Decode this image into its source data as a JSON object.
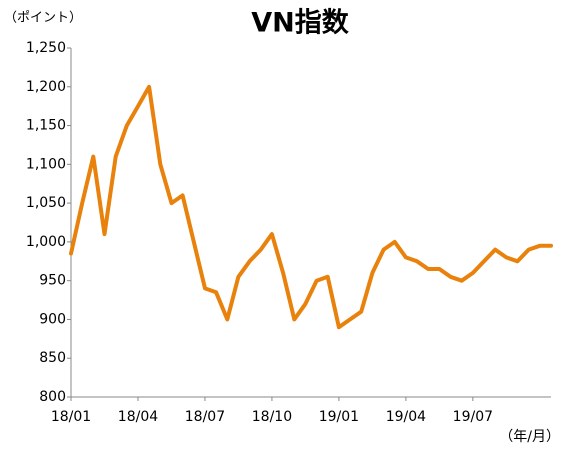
{
  "chart_data": {
    "type": "line",
    "title": "VN指数",
    "y_label": "（ポイント）",
    "x_label": "（年/月）",
    "categories": [
      "18/01",
      null,
      null,
      null,
      null,
      null,
      "18/04",
      null,
      null,
      null,
      null,
      null,
      "18/07",
      null,
      null,
      null,
      null,
      null,
      "18/10",
      null,
      null,
      null,
      null,
      null,
      "19/01",
      null,
      null,
      null,
      null,
      null,
      "19/04",
      null,
      null,
      null,
      null,
      null,
      "19/07",
      null,
      null,
      null,
      null,
      null,
      null,
      null
    ],
    "values": [
      985,
      1050,
      1110,
      1010,
      1110,
      1150,
      1175,
      1200,
      1100,
      1050,
      1060,
      1000,
      940,
      935,
      900,
      955,
      975,
      990,
      1010,
      960,
      900,
      920,
      950,
      955,
      890,
      900,
      910,
      960,
      990,
      1000,
      980,
      975,
      965,
      965,
      955,
      950,
      960,
      975,
      990,
      980,
      975,
      990,
      995,
      995
    ],
    "color": "#e8820c",
    "ylim": [
      800,
      1250
    ],
    "yticks": [
      800,
      850,
      900,
      950,
      {
        "value": 1000,
        "label": "1,000"
      },
      {
        "value": 1050,
        "label": "1,050"
      },
      {
        "value": 1100,
        "label": "1,100"
      },
      {
        "value": 1150,
        "label": "1,150"
      },
      {
        "value": 1200,
        "label": "1,200"
      },
      {
        "value": 1250,
        "label": "1,250"
      }
    ],
    "grid": false
  }
}
